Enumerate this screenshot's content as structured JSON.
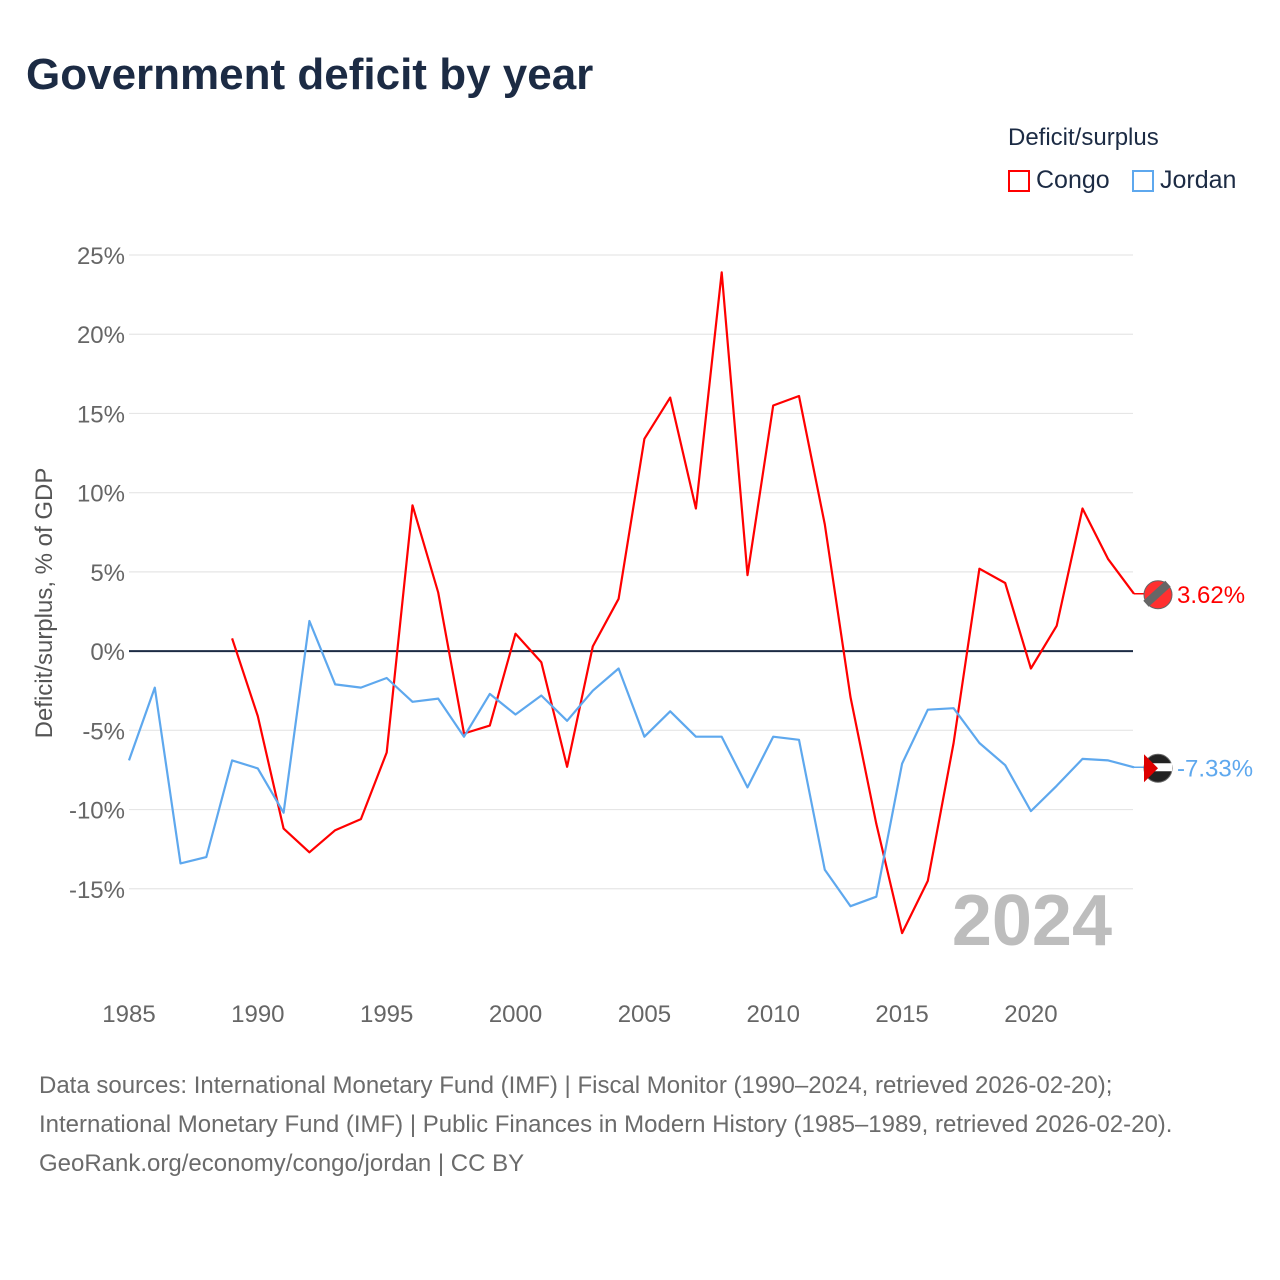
{
  "chart_data": {
    "type": "line",
    "title": "Government deficit by year",
    "ylabel": "Deficit/surplus, % of GDP",
    "xlabel": "",
    "legend_title": "Deficit/surplus",
    "legend_position": "top-right",
    "xlim": [
      1985,
      2024
    ],
    "ylim": [
      -20,
      25
    ],
    "x_ticks": [
      1985,
      1990,
      1995,
      2000,
      2005,
      2010,
      2015,
      2020
    ],
    "y_ticks": [
      25,
      20,
      15,
      10,
      5,
      0,
      -5,
      -10,
      -15
    ],
    "grid": true,
    "year_annotation": "2024",
    "series": [
      {
        "name": "Congo",
        "color": "#ff0000",
        "end_label": "3.62%",
        "x": [
          1989,
          1990,
          1991,
          1992,
          1993,
          1994,
          1995,
          1996,
          1997,
          1998,
          1999,
          2000,
          2001,
          2002,
          2003,
          2004,
          2005,
          2006,
          2007,
          2008,
          2009,
          2010,
          2011,
          2012,
          2013,
          2014,
          2015,
          2016,
          2017,
          2018,
          2019,
          2020,
          2021,
          2022,
          2023,
          2024
        ],
        "values": [
          0.8,
          -4.1,
          -11.2,
          -12.7,
          -11.3,
          -10.6,
          -6.4,
          9.2,
          3.7,
          -5.2,
          -4.7,
          1.1,
          -0.7,
          -7.3,
          0.3,
          3.3,
          13.4,
          16.0,
          9.0,
          23.9,
          4.8,
          15.5,
          16.1,
          8.0,
          -2.9,
          -10.9,
          -17.8,
          -14.5,
          -5.8,
          5.2,
          4.3,
          -1.1,
          1.6,
          9.0,
          5.8,
          3.62
        ]
      },
      {
        "name": "Jordan",
        "color": "#5ea8ee",
        "end_label": "-7.33%",
        "x": [
          1985,
          1986,
          1987,
          1988,
          1989,
          1990,
          1991,
          1992,
          1993,
          1994,
          1995,
          1996,
          1997,
          1998,
          1999,
          2000,
          2001,
          2002,
          2003,
          2004,
          2005,
          2006,
          2007,
          2008,
          2009,
          2010,
          2011,
          2012,
          2013,
          2014,
          2015,
          2016,
          2017,
          2018,
          2019,
          2020,
          2021,
          2022,
          2023,
          2024
        ],
        "values": [
          -6.9,
          -2.3,
          -13.4,
          -13.0,
          -6.9,
          -7.4,
          -10.2,
          1.9,
          -2.1,
          -2.3,
          -1.7,
          -3.2,
          -3.0,
          -5.4,
          -2.7,
          -4.0,
          -2.8,
          -4.4,
          -2.5,
          -1.1,
          -5.4,
          -3.8,
          -5.4,
          -5.4,
          -8.6,
          -5.4,
          -5.6,
          -13.8,
          -16.1,
          -15.5,
          -7.1,
          -3.7,
          -3.6,
          -5.8,
          -7.2,
          -10.1,
          -8.5,
          -6.8,
          -6.9,
          -7.33
        ]
      }
    ]
  },
  "sources": {
    "line1": "Data sources: International Monetary Fund (IMF) | Fiscal Monitor (1990–2024, retrieved 2026-02-20); International Monetary Fund (IMF) | Public Finances in Modern History (1985–1989, retrieved 2026-02-20).",
    "line2": "GeoRank.org/economy/congo/jordan | CC BY"
  }
}
